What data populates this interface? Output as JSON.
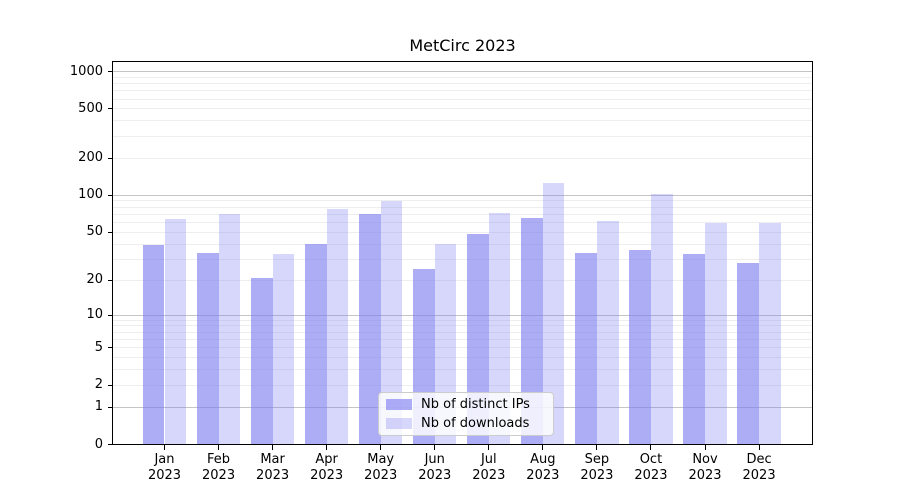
{
  "chart_data": {
    "type": "bar",
    "title": "MetCirc 2023",
    "categories": [
      "Jan\n2023",
      "Feb\n2023",
      "Mar\n2023",
      "Apr\n2023",
      "May\n2023",
      "Jun\n2023",
      "Jul\n2023",
      "Aug\n2023",
      "Sep\n2023",
      "Oct\n2023",
      "Nov\n2023",
      "Dec\n2023"
    ],
    "series": [
      {
        "name": "Nb of distinct IPs",
        "color": "rgba(122,122,241,0.62)",
        "values": [
          39,
          34,
          21,
          40,
          71,
          25,
          48,
          65,
          34,
          36,
          33,
          28
        ]
      },
      {
        "name": "Nb of downloads",
        "color": "rgba(122,122,241,0.30)",
        "values": [
          64,
          71,
          33,
          77,
          90,
          40,
          72,
          125,
          62,
          102,
          60,
          59
        ]
      }
    ],
    "xlabel": "",
    "ylabel": "",
    "y_scale": "log1p",
    "y_ticks": [
      0,
      1,
      2,
      5,
      10,
      20,
      50,
      100,
      200,
      500,
      1000
    ],
    "ylim": [
      0,
      1230
    ],
    "grid": true,
    "legend_position": "lower center",
    "bar_width_fraction": 0.4
  },
  "colors": {
    "major_grid": "#c5c5c5",
    "minor_grid": "#eeeeee",
    "spine": "#000000",
    "text": "#000000",
    "legend_border": "#cccccc",
    "legend_bg": "rgba(255,255,255,0.8)"
  }
}
